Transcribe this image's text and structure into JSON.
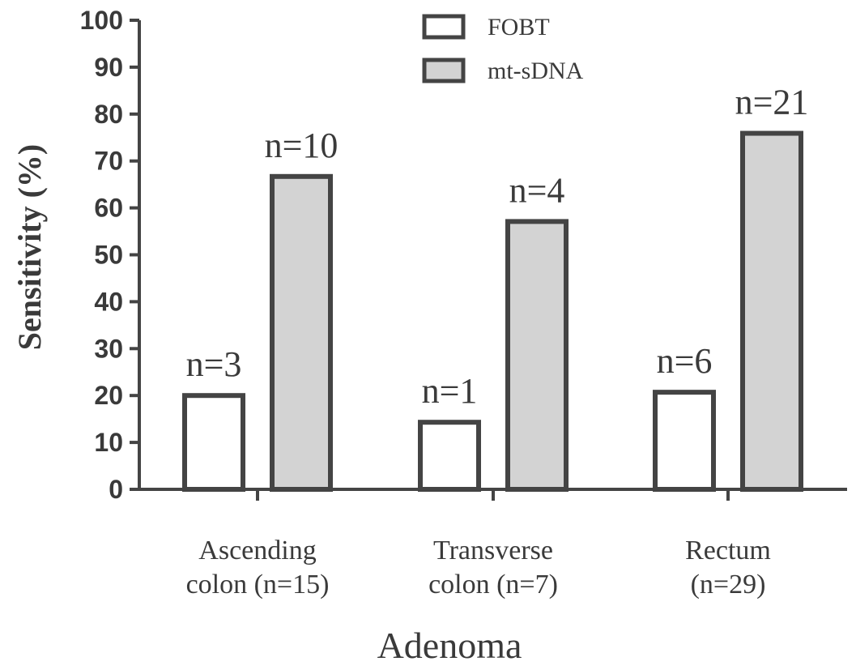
{
  "chart_data": {
    "type": "bar",
    "categories": [
      [
        "Ascending",
        "colon (n=15)"
      ],
      [
        "Transverse",
        "colon (n=7)"
      ],
      [
        "Rectum",
        "(n=29)"
      ]
    ],
    "series": [
      {
        "name": "FOBT",
        "values": [
          20,
          14.3,
          20.7
        ],
        "labels": [
          "n=3",
          "n=1",
          "n=6"
        ],
        "color": "#ffffff"
      },
      {
        "name": "mt-sDNA",
        "values": [
          66.7,
          57.1,
          75.9
        ],
        "labels": [
          "n=10",
          "n=4",
          "n=21"
        ],
        "color": "#d3d3d3"
      }
    ],
    "xlabel": "Adenoma",
    "ylabel": "Sensitivity (%)",
    "ylim": [
      0,
      100
    ],
    "yticks": [
      0,
      10,
      20,
      30,
      40,
      50,
      60,
      70,
      80,
      90,
      100
    ],
    "legend_position": "top-center",
    "grid": false
  }
}
